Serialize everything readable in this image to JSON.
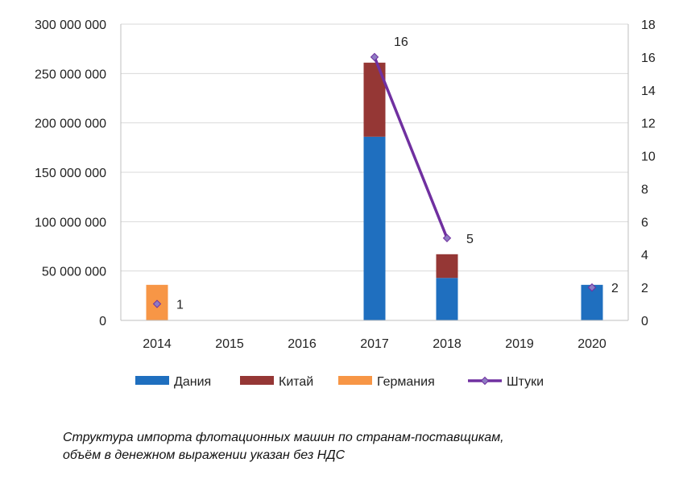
{
  "chart_data": {
    "type": "bar",
    "stacked": true,
    "categories": [
      "2014",
      "2015",
      "2016",
      "2017",
      "2018",
      "2019",
      "2020"
    ],
    "series": [
      {
        "name": "Дания",
        "type": "bar",
        "axis": "left",
        "color": "#1f6fbf",
        "values": [
          0,
          0,
          0,
          186000000,
          43000000,
          0,
          36000000
        ]
      },
      {
        "name": "Китай",
        "type": "bar",
        "axis": "left",
        "color": "#953735",
        "values": [
          0,
          0,
          0,
          75000000,
          24000000,
          0,
          0
        ]
      },
      {
        "name": "Германия",
        "type": "bar",
        "axis": "left",
        "color": "#f79646",
        "values": [
          36000000,
          0,
          0,
          0,
          0,
          0,
          0
        ]
      },
      {
        "name": "Штуки",
        "type": "line",
        "axis": "right",
        "color": "#7030a0",
        "values": [
          1,
          null,
          null,
          16,
          5,
          null,
          2
        ],
        "data_labels": [
          "1",
          "",
          "",
          "16",
          "5",
          "",
          "2"
        ]
      }
    ],
    "y_left": {
      "ylim": [
        0,
        300000000
      ],
      "ticks": [
        "0",
        "50 000 000",
        "100 000 000",
        "150 000 000",
        "200 000 000",
        "250 000 000",
        "300 000 000"
      ]
    },
    "y_right": {
      "ylim": [
        0,
        18
      ],
      "ticks": [
        "0",
        "2",
        "4",
        "6",
        "8",
        "10",
        "12",
        "14",
        "16",
        "18"
      ]
    },
    "grid": true,
    "legend_position": "bottom",
    "title": "",
    "xlabel": "",
    "ylabel": ""
  },
  "caption": {
    "line1": "Структура импорта флотационных машин по странам-поставщикам,",
    "line2": "объём в денежном выражении указан без НДС"
  }
}
